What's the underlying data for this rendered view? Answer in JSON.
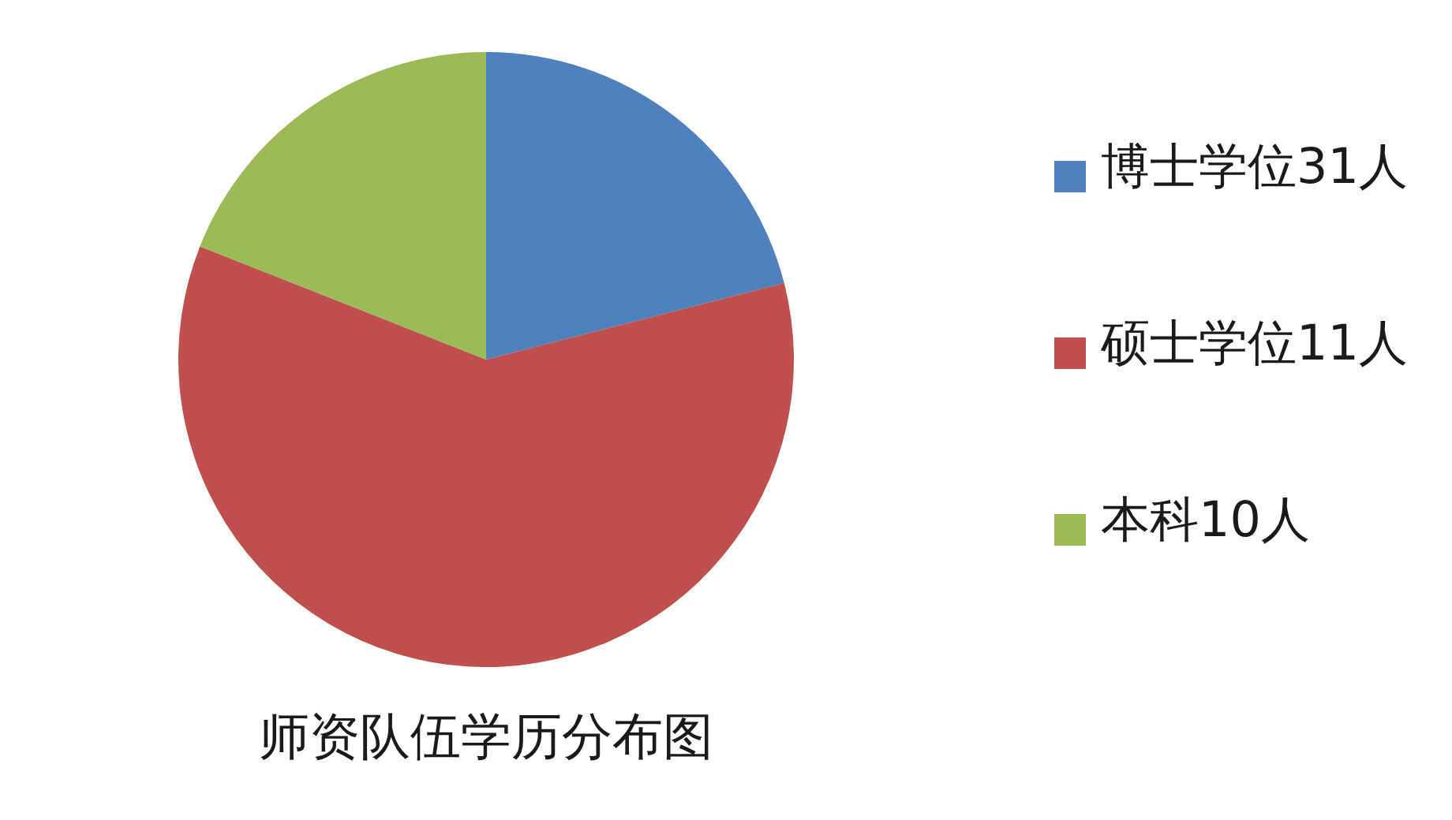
{
  "chart_data": {
    "type": "pie",
    "title": "师资队伍学历分布图",
    "categories": [
      "博士学位31人",
      "硕士学位11人",
      "本科10人"
    ],
    "values": [
      21,
      60,
      19
    ],
    "colors": [
      "#4f81bd",
      "#c0504d",
      "#9bbb59"
    ],
    "legend": "right"
  }
}
